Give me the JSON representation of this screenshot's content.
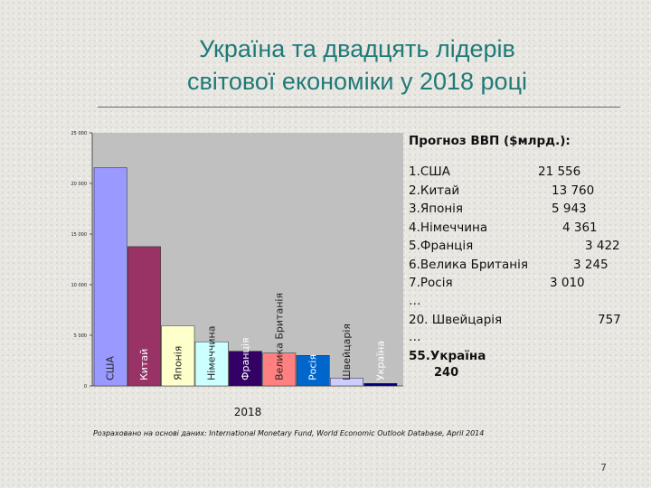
{
  "slide": {
    "title_line1": "Україна та двадцять лідерів",
    "title_line2": "світової економіки у 2018 році",
    "source_note": "Розраховано на основі даних: International Monetary Fund, World Economic Outlook Database, April 2014",
    "page_number": "7"
  },
  "forecast": {
    "heading": "Прогноз ВВП ($млрд.):",
    "rows": [
      {
        "name": "1.США",
        "value": "21 556"
      },
      {
        "name": "2.Китай",
        "value": "13 760"
      },
      {
        "name": "3.Японія",
        "value": "5 943"
      },
      {
        "name": "4.Німеччина",
        "value": "4 361"
      },
      {
        "name": "5.Франція",
        "value": "3 422"
      },
      {
        "name": "6.Велика Британія",
        "value": "3 245"
      },
      {
        "name": "7.Росія",
        "value": "3 010"
      }
    ],
    "ellipsis1": "…",
    "row20": {
      "name": "20. Швейцарія",
      "value": "757"
    },
    "ellipsis2": "…",
    "ukraine_name": "55.Україна",
    "ukraine_value": "240"
  },
  "chart_data": {
    "type": "bar",
    "categories": [
      "США",
      "Китай",
      "Японія",
      "Німеччина",
      "Франція",
      "Велика Британія",
      "Росія",
      "Швейцарія",
      "Україна"
    ],
    "values": [
      21556,
      13760,
      5943,
      4361,
      3422,
      3245,
      3010,
      757,
      240
    ],
    "colors": [
      "#9999ff",
      "#993366",
      "#ffffcc",
      "#ccffff",
      "#330066",
      "#ff8080",
      "#0066cc",
      "#ccccff",
      "#000080"
    ],
    "xlabel": "2018",
    "ylim": [
      0,
      25000
    ],
    "yticks": [
      0,
      5000,
      10000,
      15000,
      20000,
      25000
    ],
    "ytick_labels": [
      "0",
      "5 000",
      "10 000",
      "15 000",
      "20 000",
      "25 000"
    ],
    "plot_background": "#c0c0c0",
    "grid": false,
    "legend": "none"
  }
}
